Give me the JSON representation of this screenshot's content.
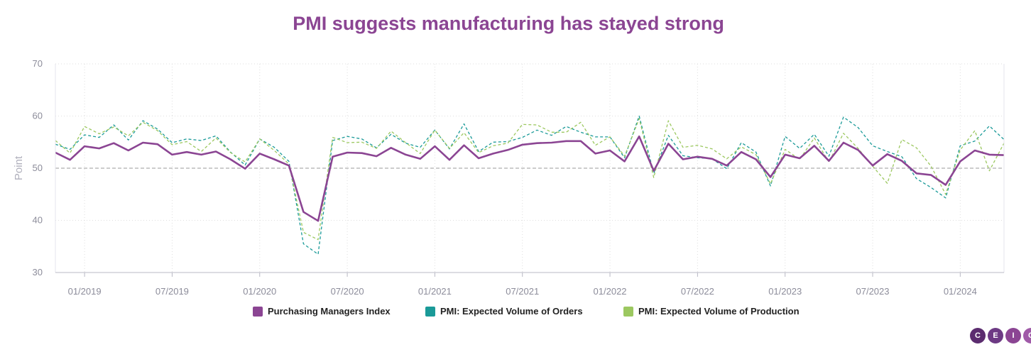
{
  "chart_data": {
    "type": "line",
    "title": "PMI suggests manufacturing has stayed strong",
    "ylabel": "Point",
    "ylim": [
      30,
      70
    ],
    "yticks": [
      30,
      40,
      50,
      60,
      70
    ],
    "reference_line": 50,
    "x_start": "2018-11",
    "x_end": "2024-03",
    "xticks": [
      "01/2019",
      "07/2019",
      "01/2020",
      "07/2020",
      "01/2021",
      "07/2021",
      "01/2022",
      "07/2022",
      "01/2023",
      "07/2023",
      "01/2024"
    ],
    "grid": true,
    "legend_position": "bottom",
    "series": [
      {
        "name": "Purchasing Managers Index",
        "color": "#8b4593",
        "style": "solid",
        "values": [
          53.0,
          51.6,
          54.2,
          53.8,
          54.8,
          53.4,
          54.9,
          54.6,
          52.6,
          53.1,
          52.6,
          53.2,
          51.7,
          49.9,
          52.8,
          51.7,
          50.5,
          41.6,
          39.9,
          52.2,
          53.0,
          52.9,
          52.3,
          53.9,
          52.6,
          51.8,
          54.2,
          51.6,
          54.4,
          51.9,
          52.8,
          53.5,
          54.5,
          54.8,
          54.9,
          55.2,
          55.2,
          52.8,
          53.4,
          51.3,
          56.1,
          49.5,
          54.7,
          51.7,
          52.2,
          51.8,
          50.5,
          53.1,
          51.7,
          48.3,
          52.6,
          51.9,
          54.3,
          51.4,
          54.9,
          53.5,
          50.5,
          52.7,
          51.4,
          49.0,
          48.7,
          46.8,
          51.3,
          53.4,
          52.6,
          52.5
        ]
      },
      {
        "name": "PMI: Expected Volume of Orders",
        "color": "#1a9a98",
        "style": "dashed",
        "values": [
          54.6,
          53.6,
          56.4,
          55.9,
          58.3,
          55.4,
          59.1,
          57.5,
          54.9,
          55.6,
          55.3,
          56.2,
          53.1,
          50.6,
          55.6,
          54.0,
          51.3,
          35.5,
          33.5,
          55.3,
          56.1,
          55.6,
          53.9,
          56.5,
          54.8,
          54.0,
          57.3,
          53.7,
          58.5,
          53.2,
          55.0,
          55.1,
          55.9,
          57.3,
          56.3,
          58.0,
          56.9,
          56.0,
          56.0,
          52.0,
          60.0,
          49.0,
          56.3,
          52.4,
          52.0,
          51.8,
          49.9,
          54.9,
          53.1,
          46.6,
          56.1,
          53.8,
          56.5,
          52.3,
          59.8,
          57.8,
          54.3,
          53.2,
          52.2,
          48.0,
          46.3,
          44.3,
          54.3,
          55.2,
          58.1,
          55.5
        ]
      },
      {
        "name": "PMI: Expected Volume of Production",
        "color": "#9cc860",
        "style": "dashed",
        "values": [
          55.3,
          52.9,
          58.0,
          56.6,
          57.9,
          56.2,
          58.8,
          57.2,
          54.5,
          55.1,
          53.2,
          55.8,
          53.0,
          51.2,
          55.6,
          53.4,
          50.8,
          37.7,
          36.3,
          55.9,
          54.9,
          55.0,
          53.8,
          57.1,
          54.9,
          52.8,
          57.3,
          53.8,
          56.8,
          53.0,
          54.3,
          54.8,
          58.4,
          58.3,
          56.9,
          56.9,
          58.8,
          54.4,
          56.0,
          52.3,
          59.5,
          48.2,
          59.1,
          54.0,
          54.4,
          53.7,
          51.8,
          54.1,
          52.6,
          47.0,
          53.6,
          51.7,
          55.8,
          51.2,
          56.7,
          53.8,
          50.4,
          47.1,
          55.5,
          53.9,
          50.4,
          45.0,
          53.5,
          57.2,
          49.5,
          54.8
        ]
      }
    ]
  },
  "logo_letters": [
    "C",
    "E",
    "I",
    "C"
  ],
  "logo_colors": [
    "#5b2c6f",
    "#6d3a84",
    "#8b4593",
    "#a05aa8"
  ]
}
